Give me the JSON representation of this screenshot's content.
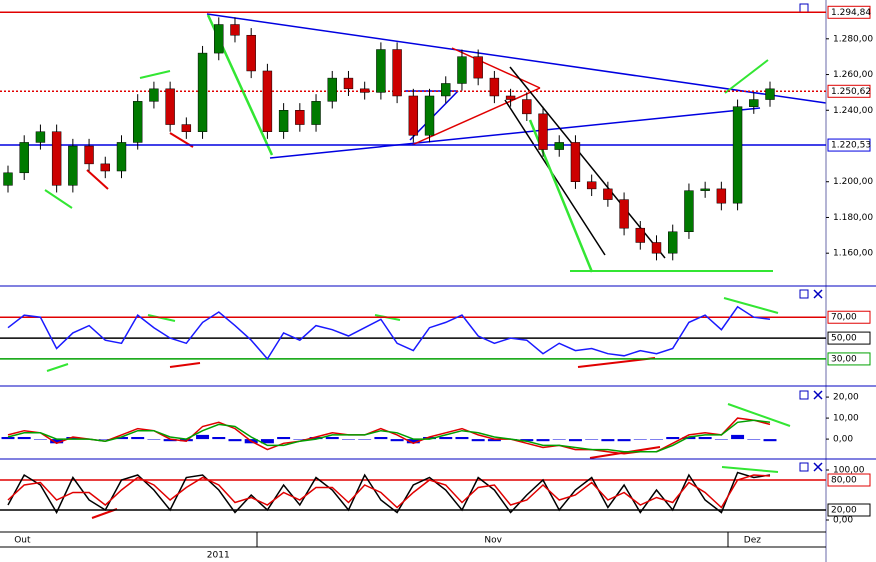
{
  "chart_data": [
    {
      "type": "candlestick",
      "categories": [
        null,
        "Out",
        null,
        null,
        null,
        null,
        null,
        null,
        null,
        null,
        null,
        null,
        null,
        null,
        null,
        null,
        null,
        null,
        null,
        null,
        null,
        null,
        null,
        null,
        null,
        null,
        null,
        null,
        null,
        null,
        "Nov",
        null,
        null,
        null,
        null,
        null,
        null,
        null,
        null,
        null,
        null,
        null,
        null,
        null,
        null,
        null,
        "Dez",
        null
      ],
      "years": [
        null,
        null,
        null,
        null,
        null,
        null,
        null,
        null,
        null,
        null,
        null,
        null,
        null,
        "2011",
        null,
        null,
        null,
        null,
        null,
        null,
        null,
        null,
        null,
        null,
        null,
        null,
        null,
        null,
        null,
        null,
        null,
        null,
        null,
        null,
        null,
        null,
        null,
        null,
        null,
        null,
        null,
        null,
        null,
        null,
        null,
        null,
        null,
        null
      ],
      "open": [
        1.198,
        1.205,
        1.222,
        1.228,
        1.198,
        1.22,
        1.21,
        1.206,
        1.222,
        1.245,
        1.252,
        1.232,
        1.228,
        1.272,
        1.288,
        1.282,
        1.262,
        1.228,
        1.24,
        1.232,
        1.245,
        1.258,
        1.252,
        1.25,
        1.274,
        1.248,
        1.226,
        1.248,
        1.255,
        1.27,
        1.258,
        1.248,
        1.246,
        1.238,
        1.218,
        1.222,
        1.2,
        1.196,
        1.19,
        1.174,
        1.166,
        1.16,
        1.172,
        1.195,
        1.196,
        1.188,
        1.242,
        1.246
      ],
      "high": [
        1.209,
        1.226,
        1.232,
        1.232,
        1.224,
        1.224,
        1.214,
        1.226,
        1.249,
        1.256,
        1.256,
        1.236,
        1.276,
        1.292,
        1.292,
        1.286,
        1.266,
        1.244,
        1.244,
        1.249,
        1.262,
        1.262,
        1.256,
        1.278,
        1.278,
        1.252,
        1.252,
        1.259,
        1.274,
        1.274,
        1.262,
        1.252,
        1.25,
        1.242,
        1.226,
        1.226,
        1.204,
        1.2,
        1.194,
        1.178,
        1.17,
        1.176,
        1.199,
        1.2,
        1.2,
        1.246,
        1.25,
        1.256
      ],
      "low": [
        1.194,
        1.201,
        1.218,
        1.194,
        1.194,
        1.206,
        1.202,
        1.202,
        1.218,
        1.241,
        1.228,
        1.224,
        1.224,
        1.268,
        1.278,
        1.258,
        1.224,
        1.224,
        1.228,
        1.228,
        1.241,
        1.248,
        1.246,
        1.246,
        1.244,
        1.222,
        1.222,
        1.244,
        1.251,
        1.254,
        1.244,
        1.242,
        1.234,
        1.214,
        1.214,
        1.196,
        1.192,
        1.186,
        1.17,
        1.162,
        1.156,
        1.156,
        1.168,
        1.191,
        1.184,
        1.184,
        1.238,
        1.242
      ],
      "close": [
        1.205,
        1.222,
        1.228,
        1.198,
        1.22,
        1.21,
        1.206,
        1.222,
        1.245,
        1.252,
        1.232,
        1.228,
        1.272,
        1.288,
        1.282,
        1.262,
        1.228,
        1.24,
        1.232,
        1.245,
        1.258,
        1.252,
        1.25,
        1.274,
        1.248,
        1.226,
        1.248,
        1.255,
        1.27,
        1.258,
        1.248,
        1.246,
        1.238,
        1.218,
        1.222,
        1.2,
        1.196,
        1.19,
        1.174,
        1.166,
        1.16,
        1.172,
        1.195,
        1.196,
        1.188,
        1.242,
        1.246,
        1.252
      ],
      "colors": {
        "up": "#007a00",
        "down": "#cc0000",
        "wick": "#000000"
      },
      "ylim": [
        1.1422,
        1.3006
      ],
      "yticks": [
        {
          "value": 1.16,
          "label": "1.160,00"
        },
        {
          "value": 1.18,
          "label": "1.180,00"
        },
        {
          "value": 1.2,
          "label": "1.200,00"
        },
        {
          "value": 1.24,
          "label": "1.240,00"
        },
        {
          "value": 1.26,
          "label": "1.260,00"
        },
        {
          "value": 1.28,
          "label": "1.280,00"
        }
      ],
      "levels": [
        {
          "value": 1.29484,
          "label": "1.294,84",
          "color": "#e00000",
          "style": "solid"
        },
        {
          "value": 1.25062,
          "label": "1.250,62",
          "color": "#e00000",
          "style": "dotted"
        },
        {
          "value": 1.22053,
          "label": "1.220,53",
          "color": "#0000e0",
          "style": "solid"
        }
      ]
    },
    {
      "type": "line",
      "series": [
        {
          "color": "#1a1aff",
          "values": [
            60,
            72,
            70,
            40,
            55,
            62,
            48,
            45,
            72,
            60,
            50,
            45,
            65,
            75,
            62,
            48,
            30,
            55,
            48,
            62,
            58,
            52,
            60,
            68,
            45,
            38,
            60,
            65,
            72,
            52,
            45,
            50,
            48,
            35,
            45,
            38,
            40,
            35,
            33,
            38,
            35,
            40,
            65,
            72,
            58,
            80,
            70,
            68
          ]
        }
      ],
      "ylim": [
        5,
        99
      ],
      "yticks": [],
      "levels": [
        {
          "value": 70,
          "label": "70,00",
          "color": "#e00000",
          "style": "solid"
        },
        {
          "value": 50,
          "label": "50,00",
          "color": "#000000",
          "style": "solid"
        },
        {
          "value": 30,
          "label": "30,00",
          "color": "#00a000",
          "style": "solid"
        }
      ]
    },
    {
      "type": "line",
      "series": [
        {
          "type": "bar",
          "color": "#0000e0",
          "values": [
            1,
            1,
            0,
            -2,
            1,
            0,
            0,
            1,
            1,
            0,
            -1,
            -1,
            2,
            1,
            -1,
            -2,
            -2,
            1,
            0,
            1,
            1,
            0,
            0,
            1,
            -1,
            -2,
            1,
            1,
            1,
            -1,
            -1,
            0,
            -1,
            -1,
            0,
            -1,
            0,
            -1,
            -1,
            0,
            0,
            1,
            1,
            1,
            0,
            2,
            0,
            -1
          ]
        },
        {
          "type": "line",
          "color": "#e00000",
          "values": [
            2,
            4,
            3,
            -2,
            1,
            0,
            -1,
            2,
            5,
            4,
            0,
            -1,
            6,
            8,
            5,
            -1,
            -5,
            -2,
            -1,
            1,
            3,
            2,
            2,
            5,
            2,
            -2,
            1,
            3,
            5,
            2,
            0,
            0,
            -2,
            -4,
            -3,
            -5,
            -5,
            -6,
            -7,
            -6,
            -6,
            -2,
            2,
            3,
            2,
            10,
            9,
            7
          ]
        },
        {
          "type": "line",
          "color": "#00a000",
          "values": [
            1,
            3,
            3,
            0,
            0,
            0,
            -1,
            1,
            4,
            4,
            1,
            0,
            4,
            7,
            6,
            1,
            -3,
            -3,
            -1,
            0,
            2,
            2,
            2,
            4,
            3,
            0,
            0,
            2,
            4,
            3,
            1,
            0,
            -1,
            -3,
            -3,
            -4,
            -5,
            -5,
            -6,
            -6,
            -6,
            -3,
            1,
            2,
            2,
            8,
            9,
            8
          ]
        }
      ],
      "ylim": [
        -9,
        24.8
      ],
      "yticks": [
        {
          "value": 20,
          "label": "20,00"
        },
        {
          "value": 10,
          "label": "10,00"
        },
        {
          "value": 0,
          "label": "0,00"
        }
      ],
      "levels": []
    },
    {
      "type": "line",
      "series": [
        {
          "type": "line",
          "color": "#000000",
          "values": [
            30,
            90,
            70,
            15,
            85,
            40,
            20,
            80,
            90,
            60,
            20,
            85,
            90,
            60,
            15,
            50,
            20,
            70,
            30,
            85,
            60,
            20,
            90,
            40,
            15,
            70,
            85,
            60,
            20,
            85,
            60,
            15,
            50,
            80,
            20,
            60,
            85,
            25,
            70,
            15,
            60,
            20,
            90,
            40,
            15,
            95,
            85,
            90
          ]
        },
        {
          "type": "line",
          "color": "#e00000",
          "values": [
            40,
            70,
            75,
            40,
            55,
            55,
            30,
            60,
            85,
            70,
            40,
            65,
            85,
            70,
            35,
            45,
            30,
            55,
            40,
            65,
            65,
            35,
            70,
            55,
            25,
            55,
            80,
            70,
            35,
            65,
            70,
            30,
            40,
            70,
            40,
            50,
            75,
            40,
            55,
            30,
            45,
            35,
            75,
            55,
            25,
            80,
            90,
            88
          ]
        }
      ],
      "ylim": [
        -20,
        120
      ],
      "yticks": [
        {
          "value": 100,
          "label": "100,00"
        },
        {
          "value": 0,
          "label": "0,00"
        }
      ],
      "levels": [
        {
          "value": 80,
          "label": "80,00",
          "color": "#e00000",
          "style": "solid"
        },
        {
          "value": 20,
          "label": "20,00",
          "color": "#000000",
          "style": "solid"
        }
      ]
    }
  ]
}
